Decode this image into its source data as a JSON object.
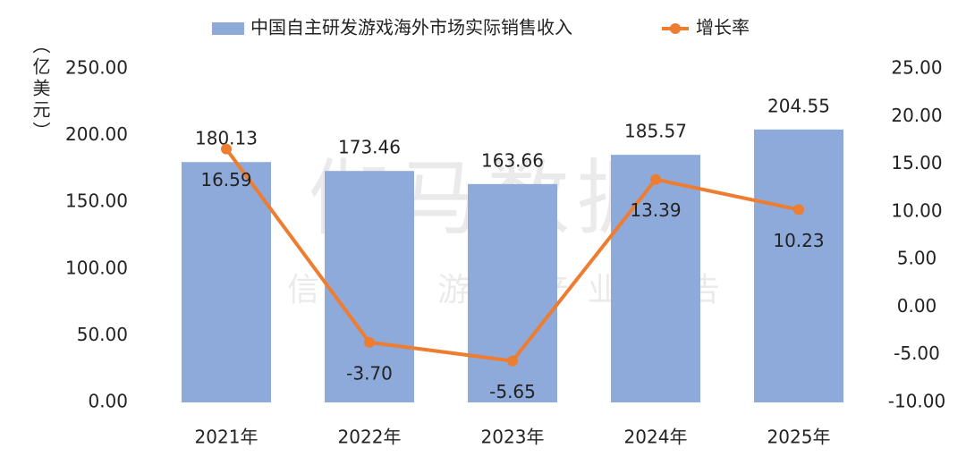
{
  "chart_data": {
    "type": "bar",
    "watermark": [
      "伽马数据",
      "微信号：游戏产业报告"
    ],
    "y_label": "（亿美元）",
    "categories": [
      "2021年",
      "2022年",
      "2023年",
      "2024年",
      "2025年"
    ],
    "series": [
      {
        "name": "中国自主研发游戏海外市场实际销售收入",
        "type": "bar",
        "color": "#8eaadb",
        "values": [
          180.13,
          173.46,
          163.66,
          185.57,
          204.55
        ],
        "value_labels": [
          "180.13",
          "173.46",
          "163.66",
          "185.57",
          "204.55"
        ]
      },
      {
        "name": "增长率",
        "type": "line",
        "axis": "y2",
        "color": "#ed7d31",
        "values": [
          16.59,
          -3.7,
          -5.65,
          13.39,
          10.23
        ],
        "value_labels": [
          "16.59",
          "-3.70",
          "-5.65",
          "13.39",
          "10.23"
        ]
      }
    ],
    "ylim": [
      0,
      250
    ],
    "yticks": [
      {
        "value": 0,
        "label": "0.00"
      },
      {
        "value": 50,
        "label": "50.00"
      },
      {
        "value": 100,
        "label": "100.00"
      },
      {
        "value": 150,
        "label": "150.00"
      },
      {
        "value": 200,
        "label": "200.00"
      },
      {
        "value": 250,
        "label": "250.00"
      }
    ],
    "y2lim": [
      -10,
      25
    ],
    "y2ticks": [
      {
        "value": -10,
        "label": "-10.00"
      },
      {
        "value": -5,
        "label": "-5.00"
      },
      {
        "value": 0,
        "label": "0.00"
      },
      {
        "value": 5,
        "label": "5.00"
      },
      {
        "value": 10,
        "label": "10.00"
      },
      {
        "value": 15,
        "label": "15.00"
      },
      {
        "value": 20,
        "label": "20.00"
      },
      {
        "value": 25,
        "label": "25.00"
      }
    ],
    "legend": "top",
    "grid": false
  }
}
